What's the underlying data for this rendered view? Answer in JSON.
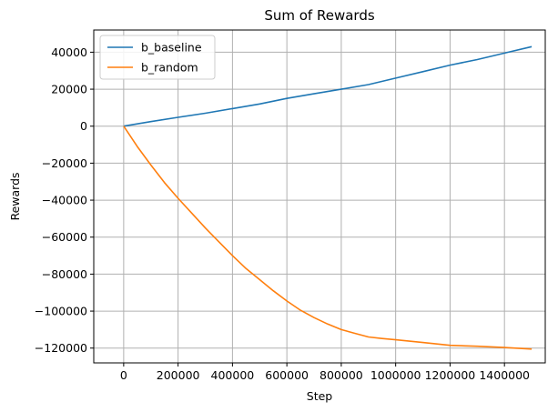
{
  "chart_data": {
    "type": "line",
    "title": "Sum of Rewards",
    "xlabel": "Step",
    "ylabel": "Rewards",
    "xlim": [
      -110000,
      1550000
    ],
    "ylim": [
      -128000,
      52000
    ],
    "x_ticks": [
      0,
      200000,
      400000,
      600000,
      800000,
      1000000,
      1200000,
      1400000
    ],
    "x_tick_labels": [
      "0",
      "200000",
      "400000",
      "600000",
      "800000",
      "1000000",
      "1200000",
      "1400000"
    ],
    "y_ticks": [
      -120000,
      -100000,
      -80000,
      -60000,
      -40000,
      -20000,
      0,
      20000,
      40000
    ],
    "y_tick_labels": [
      "−120000",
      "−100000",
      "−80000",
      "−60000",
      "−40000",
      "−20000",
      "0",
      "20000",
      "40000"
    ],
    "grid": true,
    "legend_position": "top-left",
    "series": [
      {
        "name": "b_baseline",
        "color": "#1f77b4",
        "x": [
          0,
          100000,
          200000,
          300000,
          400000,
          500000,
          600000,
          700000,
          800000,
          900000,
          1000000,
          1100000,
          1200000,
          1300000,
          1400000,
          1500000
        ],
        "y": [
          0,
          2500,
          4800,
          7000,
          9500,
          12000,
          15000,
          17500,
          20000,
          22500,
          26000,
          29500,
          33000,
          36000,
          39500,
          43000
        ]
      },
      {
        "name": "b_random",
        "color": "#ff7f0e",
        "x": [
          0,
          50000,
          100000,
          150000,
          200000,
          250000,
          300000,
          350000,
          400000,
          450000,
          500000,
          550000,
          600000,
          650000,
          700000,
          750000,
          800000,
          850000,
          900000,
          950000,
          1000000,
          1100000,
          1200000,
          1300000,
          1400000,
          1500000
        ],
        "y": [
          0,
          -11000,
          -21000,
          -30500,
          -39000,
          -47000,
          -55000,
          -62500,
          -70000,
          -77000,
          -83000,
          -89000,
          -94500,
          -99500,
          -103500,
          -107000,
          -110000,
          -112000,
          -114000,
          -114800,
          -115500,
          -117000,
          -118500,
          -119000,
          -119700,
          -120500
        ]
      }
    ]
  }
}
